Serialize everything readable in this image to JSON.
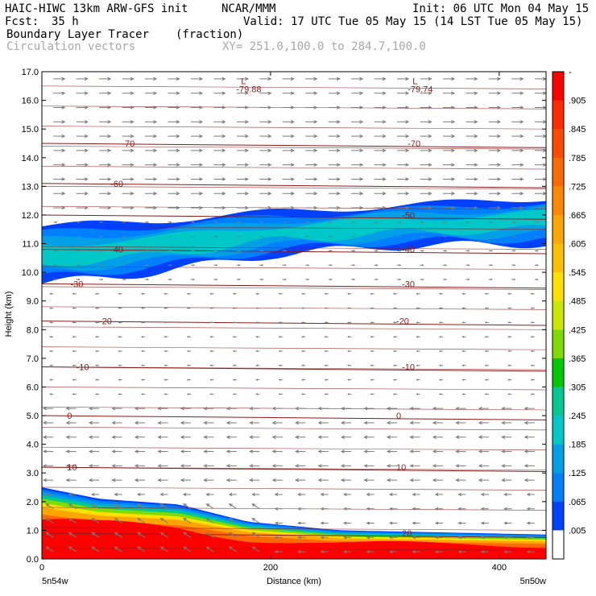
{
  "header": {
    "model": "HAIC-HIWC 13km ARW-GFS init",
    "org": "NCAR/MMM",
    "init": "Init: 06 UTC Mon 04 May 15",
    "fcst_label": "Fcst:",
    "fcst_value": "35 h",
    "valid": "Valid: 17 UTC Tue 05 May 15 (14 LST Tue 05 May 15)",
    "field": "Boundary Layer Tracer",
    "units": "(fraction)",
    "vectors": "Circulation vectors",
    "xy": "XY= 251.0,100.0 to 284.7,100.0"
  },
  "chart_data": {
    "type": "heatmap",
    "xlabel": "Distance (km)",
    "ylabel": "Height (km)",
    "xlim": [
      0,
      441
    ],
    "ylim": [
      0,
      17
    ],
    "x_ticks": [
      0,
      200,
      400
    ],
    "x_tick_labels": [
      "0",
      "200",
      "400"
    ],
    "y_ticks": [
      0,
      1,
      2,
      3,
      4,
      5,
      6,
      7,
      8,
      9,
      10,
      11,
      12,
      13,
      14,
      15,
      16,
      17
    ],
    "y_tick_labels": [
      "0.0",
      "1.0",
      "2.0",
      "3.0",
      "4.0",
      "5.0",
      "6.0",
      "7.0",
      "8.0",
      "9.0",
      "10.0",
      "11.0",
      "12.0",
      "13.0",
      "14.0",
      "15.0",
      "16.0",
      "17.0"
    ],
    "left_endpoint": "5n54w",
    "right_endpoint": "5n50w",
    "colorbar": {
      "labels": [
        "-",
        ".905",
        ".845",
        ".785",
        ".725",
        ".665",
        ".605",
        ".545",
        ".485",
        ".425",
        ".365",
        ".305",
        ".245",
        ".185",
        ".125",
        ".065",
        ".005"
      ],
      "colors": [
        "#ff0000",
        "#ff2a00",
        "#ff4a00",
        "#ff6a00",
        "#ff8800",
        "#ffa500",
        "#ffc000",
        "#ffe000",
        "#c8e800",
        "#80dc00",
        "#00c800",
        "#00c890",
        "#00c8c8",
        "#00a0e6",
        "#0080ff",
        "#0040ff",
        "#ffffff"
      ]
    },
    "temperature_contours": [
      {
        "label": "20",
        "height_km": 0.9
      },
      {
        "label": "10",
        "height_km": 3.2
      },
      {
        "label": "0",
        "height_km": 5.0
      },
      {
        "label": "-10",
        "height_km": 6.7
      },
      {
        "label": "-20",
        "height_km": 8.3
      },
      {
        "label": "-30",
        "height_km": 9.6
      },
      {
        "label": "-40",
        "height_km": 10.8
      },
      {
        "label": "-50",
        "height_km": 12.0
      },
      {
        "label": "-60",
        "height_km": 13.1
      },
      {
        "label": "-70",
        "height_km": 14.5
      }
    ],
    "minima": [
      {
        "label": "L",
        "value": "-79.88",
        "x_km": 170
      },
      {
        "label": "L",
        "value": "-79.74",
        "x_km": 320
      }
    ],
    "annotations": [
      "-70",
      "-70",
      "-60",
      "-50",
      "-40",
      "-40",
      "-30",
      "-30",
      "-20",
      "-20",
      "-10",
      "-10",
      "0",
      "0",
      "10",
      "10",
      "20"
    ],
    "boundary_layer_top_km": [
      [
        0,
        2.5
      ],
      [
        50,
        2.1
      ],
      [
        120,
        1.9
      ],
      [
        180,
        1.3
      ],
      [
        260,
        1.0
      ],
      [
        441,
        0.85
      ]
    ],
    "tracer_max": 0.965,
    "outflow_layer_km": [
      [
        0,
        9.6,
        11.6
      ],
      [
        100,
        10.0,
        11.8
      ],
      [
        200,
        10.6,
        12.1
      ],
      [
        300,
        10.9,
        12.3
      ],
      [
        441,
        11.0,
        12.6
      ]
    ]
  },
  "colors": {
    "contour": "#8b1a1a",
    "vector": "#7a7a7a",
    "frame": "#000000"
  }
}
